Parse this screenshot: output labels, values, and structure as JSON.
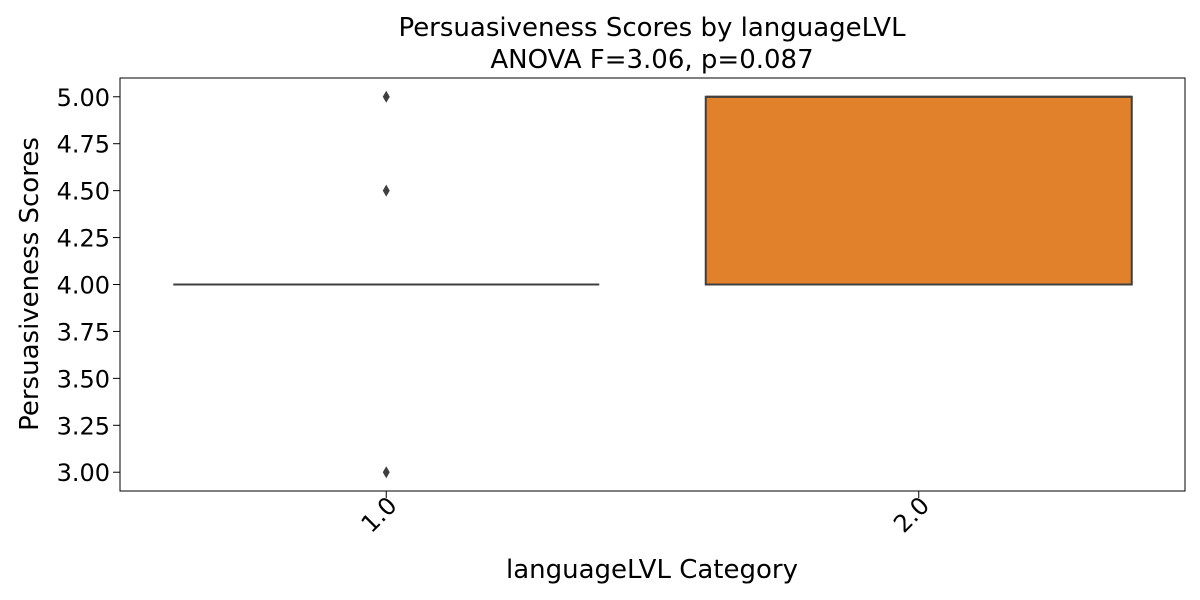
{
  "chart_data": {
    "type": "box",
    "title": "Persuasiveness Scores by languageLVL",
    "subtitle": "ANOVA F=3.06, p=0.087",
    "xlabel": "languageLVL Category",
    "ylabel": "Persuasiveness Scores",
    "ylim": [
      2.9,
      5.1
    ],
    "yticks": [
      3.0,
      3.25,
      3.5,
      3.75,
      4.0,
      4.25,
      4.5,
      4.75,
      5.0
    ],
    "ytick_labels": [
      "3.00",
      "3.25",
      "3.50",
      "3.75",
      "4.00",
      "4.25",
      "4.50",
      "4.75",
      "5.00"
    ],
    "categories": [
      "1.0",
      "2.0"
    ],
    "boxes": [
      {
        "category": "1.0",
        "q1": 4.0,
        "median": 4.0,
        "q3": 4.0,
        "whisker_low": 4.0,
        "whisker_high": 4.0,
        "outliers": [
          5.0,
          4.5,
          3.0
        ],
        "color": "#1f77b4"
      },
      {
        "category": "2.0",
        "q1": 4.0,
        "median": 5.0,
        "q3": 5.0,
        "whisker_low": 4.0,
        "whisker_high": 5.0,
        "outliers": [],
        "color": "#e1812c"
      }
    ],
    "grid": false,
    "edge_color": "#3f3f3f"
  }
}
